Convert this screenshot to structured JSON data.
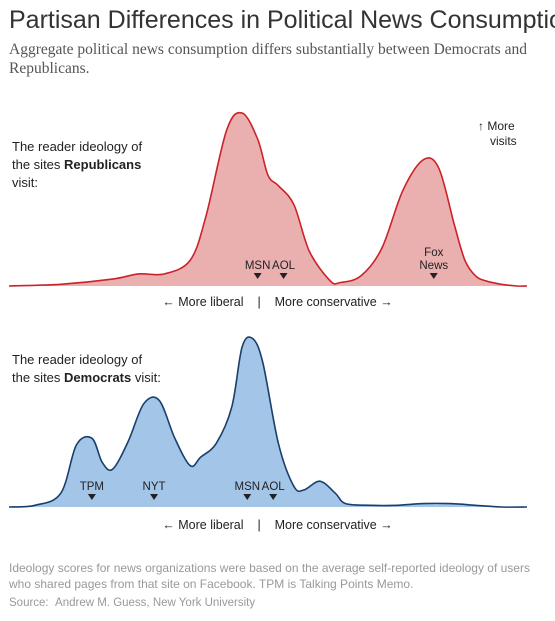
{
  "title": "Partisan Differences in Political News Consumption",
  "subtitle": "Aggregate political news consumption differs substantially between Democrats and Republicans.",
  "note": "Ideology scores for news organizations were based on the average self-reported ideology of users who shared pages from that site on Facebook. TPM is Talking Points Memo.",
  "source_label": "Source:",
  "source_text": "Andrew M. Guess, New York University",
  "more_visits": [
    "↑ More",
    "visits"
  ],
  "axis": {
    "left": "← More liberal",
    "separator": "|",
    "right": "More conservative →"
  },
  "colors": {
    "rep_fill": "#eab0b0",
    "rep_line": "#cc2229",
    "dem_fill": "#a2c5e8",
    "dem_line": "#1a3f6b"
  },
  "chart_data": [
    {
      "type": "area",
      "name": "republicans",
      "label_lines": [
        [
          "The reader ideology of"
        ],
        [
          "the sites ",
          "Republicans"
        ],
        [
          "visit:"
        ]
      ],
      "xlabel": "",
      "ylabel": "",
      "xlim": [
        0,
        100
      ],
      "ylim": [
        0,
        100
      ],
      "x": [
        0,
        10,
        20,
        25,
        30,
        35,
        38,
        42,
        45,
        48,
        50,
        52,
        55,
        58,
        62,
        64,
        68,
        72,
        76,
        80,
        83,
        86,
        88,
        90,
        92,
        95,
        98,
        100
      ],
      "values": [
        0,
        1,
        4,
        7,
        7,
        15,
        40,
        90,
        100,
        85,
        64,
        58,
        47,
        20,
        3,
        2,
        6,
        22,
        55,
        73,
        68,
        35,
        15,
        6,
        3,
        1,
        0,
        0
      ],
      "markers": [
        {
          "label": "MSN",
          "x": 48
        },
        {
          "label": "AOL",
          "x": 53
        },
        {
          "label_lines": [
            "Fox",
            "News"
          ],
          "x": 82
        }
      ]
    },
    {
      "type": "area",
      "name": "democrats",
      "label_lines": [
        [
          "The reader ideology of"
        ],
        [
          "the sites ",
          "Democrats",
          " visit:"
        ]
      ],
      "xlabel": "",
      "ylabel": "",
      "xlim": [
        0,
        100
      ],
      "ylim": [
        0,
        100
      ],
      "x": [
        0,
        5,
        10,
        13,
        16,
        18,
        20,
        23,
        26,
        29,
        32,
        35,
        37,
        40,
        43,
        45,
        47,
        49,
        52,
        55,
        57,
        60,
        63,
        65,
        70,
        75,
        80,
        85,
        90,
        95,
        100
      ],
      "values": [
        0,
        1,
        8,
        36,
        40,
        26,
        22,
        38,
        60,
        62,
        40,
        24,
        29,
        37,
        58,
        93,
        98,
        84,
        37,
        12,
        10,
        15,
        8,
        2,
        1,
        1,
        2,
        2,
        1,
        0,
        0
      ],
      "markers": [
        {
          "label": "TPM",
          "x": 16
        },
        {
          "label": "NYT",
          "x": 28
        },
        {
          "label": "MSN",
          "x": 46
        },
        {
          "label": "AOL",
          "x": 51
        }
      ]
    }
  ]
}
